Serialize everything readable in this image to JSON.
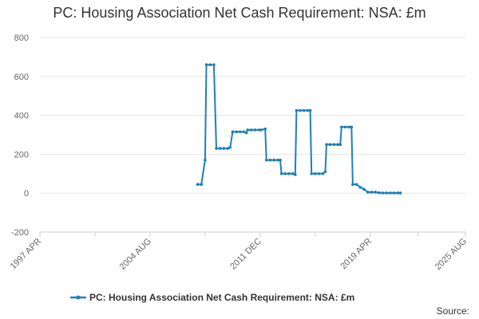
{
  "title": "PC: Housing Association Net Cash Requirement: NSA: £m",
  "source_label": "Source:",
  "series_color": "#1f7fb8",
  "chart_data": {
    "type": "line",
    "title": "PC: Housing Association Net Cash Requirement: NSA: £m",
    "xlabel": "",
    "ylabel": "",
    "ylim": [
      -200,
      800
    ],
    "yticks": [
      -200,
      0,
      200,
      400,
      600,
      800
    ],
    "xlim": [
      "1997-04",
      "2025-08"
    ],
    "xticks": [
      {
        "label": "1997 APR",
        "date": "1997-04"
      },
      {
        "label": "2004 AUG",
        "date": "2004-08"
      },
      {
        "label": "2011 DEC",
        "date": "2011-12"
      },
      {
        "label": "2019 APR",
        "date": "2019-04"
      },
      {
        "label": "2025 AUG",
        "date": "2025-08"
      }
    ],
    "grid": true,
    "legend_position": "bottom",
    "series": [
      {
        "name": "PC: Housing Association Net Cash Requirement: NSA: £m",
        "points": [
          [
            "2007-10",
            45
          ],
          [
            "2008-01",
            45
          ],
          [
            "2008-04",
            170
          ],
          [
            "2008-05",
            660
          ],
          [
            "2008-08",
            660
          ],
          [
            "2008-11",
            660
          ],
          [
            "2009-01",
            230
          ],
          [
            "2009-04",
            230
          ],
          [
            "2009-07",
            230
          ],
          [
            "2009-10",
            230
          ],
          [
            "2009-12",
            235
          ],
          [
            "2010-02",
            315
          ],
          [
            "2010-05",
            315
          ],
          [
            "2010-08",
            315
          ],
          [
            "2010-11",
            315
          ],
          [
            "2011-01",
            310
          ],
          [
            "2011-02",
            325
          ],
          [
            "2011-05",
            325
          ],
          [
            "2011-08",
            325
          ],
          [
            "2011-11",
            325
          ],
          [
            "2012-01",
            325
          ],
          [
            "2012-04",
            330
          ],
          [
            "2012-05",
            170
          ],
          [
            "2012-08",
            170
          ],
          [
            "2012-11",
            170
          ],
          [
            "2013-02",
            170
          ],
          [
            "2013-04",
            170
          ],
          [
            "2013-05",
            100
          ],
          [
            "2013-08",
            100
          ],
          [
            "2013-11",
            100
          ],
          [
            "2014-02",
            100
          ],
          [
            "2014-04",
            95
          ],
          [
            "2014-05",
            425
          ],
          [
            "2014-08",
            425
          ],
          [
            "2014-11",
            425
          ],
          [
            "2015-02",
            425
          ],
          [
            "2015-04",
            425
          ],
          [
            "2015-05",
            100
          ],
          [
            "2015-08",
            100
          ],
          [
            "2015-11",
            100
          ],
          [
            "2016-02",
            100
          ],
          [
            "2016-04",
            110
          ],
          [
            "2016-05",
            250
          ],
          [
            "2016-08",
            250
          ],
          [
            "2016-11",
            250
          ],
          [
            "2017-02",
            250
          ],
          [
            "2017-04",
            250
          ],
          [
            "2017-05",
            340
          ],
          [
            "2017-08",
            340
          ],
          [
            "2017-11",
            340
          ],
          [
            "2018-01",
            340
          ],
          [
            "2018-02",
            45
          ],
          [
            "2018-05",
            45
          ],
          [
            "2018-08",
            30
          ],
          [
            "2018-11",
            20
          ],
          [
            "2019-02",
            5
          ],
          [
            "2019-05",
            5
          ],
          [
            "2019-08",
            5
          ],
          [
            "2019-11",
            2
          ],
          [
            "2020-02",
            1
          ],
          [
            "2020-05",
            1
          ],
          [
            "2020-08",
            1
          ],
          [
            "2020-11",
            1
          ],
          [
            "2021-02",
            1
          ],
          [
            "2021-04",
            1
          ]
        ]
      }
    ]
  }
}
